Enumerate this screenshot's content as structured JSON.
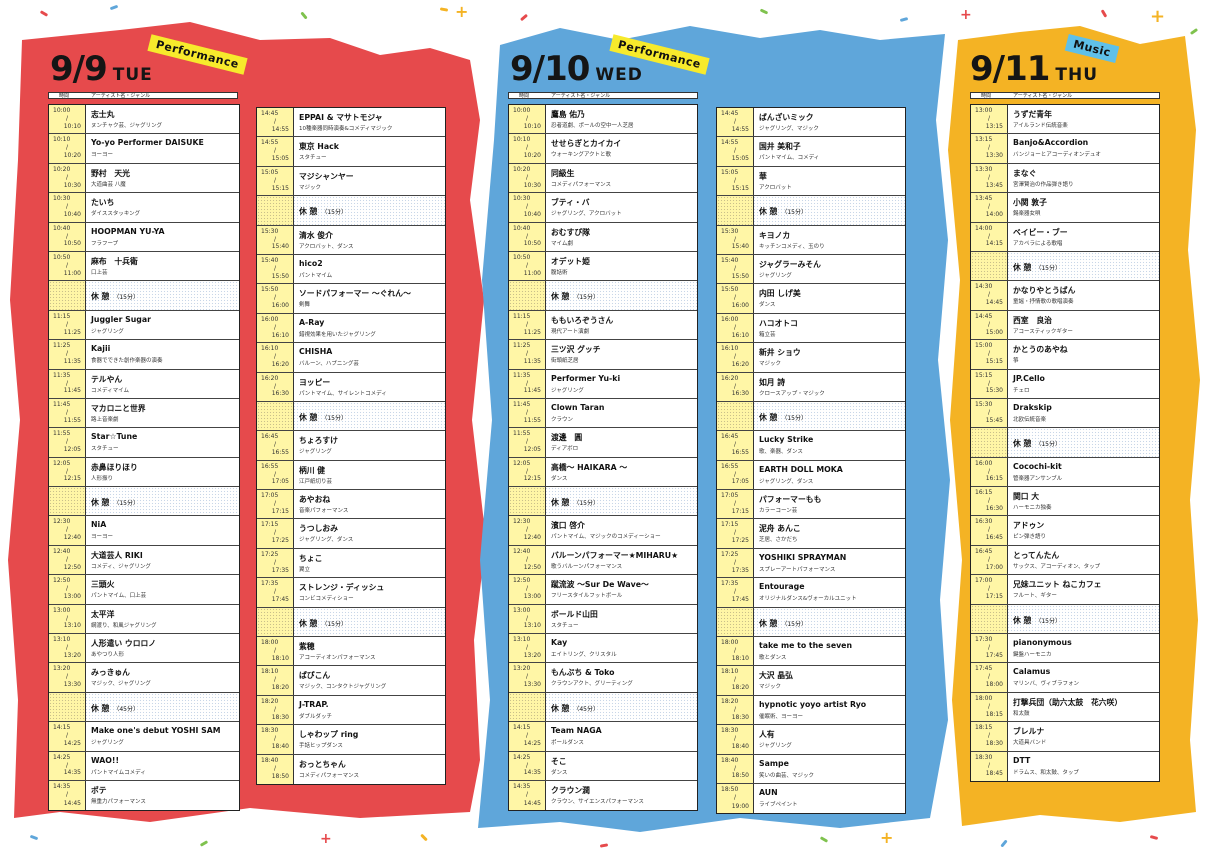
{
  "colors": {
    "red": "#e8454a",
    "blue": "#5aa3d8",
    "yellow": "#f5b21f",
    "time_cell": "#fff6a6",
    "badge_perf": "#f7ea2c",
    "badge_music": "#5fc0e8"
  },
  "header": {
    "time": "時間",
    "artist": "アーティスト名・ジャンル"
  },
  "days": [
    {
      "date": "9/9",
      "weekday": "TUE",
      "badge": "Performance",
      "columns": [
        [
          {
            "t1": "10:00",
            "t2": "10:10",
            "name": "志士丸",
            "genre": "ヌンチャク芸、ジャグリング"
          },
          {
            "t1": "10:10",
            "t2": "10:20",
            "name": "Yo-yo Performer DAISUKE",
            "genre": "ヨーヨー"
          },
          {
            "t1": "10:20",
            "t2": "10:30",
            "name": "野村　天光",
            "genre": "大道曲芸 八魔"
          },
          {
            "t1": "10:30",
            "t2": "10:40",
            "name": "たいち",
            "genre": "ダイススタッキング"
          },
          {
            "t1": "10:40",
            "t2": "10:50",
            "name": "HOOPMAN YU-YA",
            "genre": "フラフープ"
          },
          {
            "t1": "10:50",
            "t2": "11:00",
            "name": "麻布　十兵衛",
            "genre": "口上芸"
          },
          {
            "brk": true,
            "name": "休 憩",
            "note": "（15分）"
          },
          {
            "t1": "11:15",
            "t2": "11:25",
            "name": "Juggler Sugar",
            "genre": "ジャグリング"
          },
          {
            "t1": "11:25",
            "t2": "11:35",
            "name": "Kajii",
            "genre": "食器でできた創作楽器の演奏"
          },
          {
            "t1": "11:35",
            "t2": "11:45",
            "name": "テルやん",
            "genre": "コメディマイム"
          },
          {
            "t1": "11:45",
            "t2": "11:55",
            "name": "マカロニと世界",
            "genre": "路上音楽劇"
          },
          {
            "t1": "11:55",
            "t2": "12:05",
            "name": "Star☆Tune",
            "genre": "スタチュー"
          },
          {
            "t1": "12:05",
            "t2": "12:15",
            "name": "赤鼻ほりほり",
            "genre": "人形振り"
          },
          {
            "brk": true,
            "name": "休 憩",
            "note": "（15分）"
          },
          {
            "t1": "12:30",
            "t2": "12:40",
            "name": "NiA",
            "genre": "ヨーヨー"
          },
          {
            "t1": "12:40",
            "t2": "12:50",
            "name": "大道芸人 RIKI",
            "genre": "コメディ、ジャグリング"
          },
          {
            "t1": "12:50",
            "t2": "13:00",
            "name": "三頭火",
            "genre": "パントマイム、口上芸"
          },
          {
            "t1": "13:00",
            "t2": "13:10",
            "name": "太平洋",
            "genre": "綱渡り、和風ジャグリング"
          },
          {
            "t1": "13:10",
            "t2": "13:20",
            "name": "人形遣い ウロロノ",
            "genre": "あやつり人形"
          },
          {
            "t1": "13:20",
            "t2": "13:30",
            "name": "みっきゅん",
            "genre": "マジック、ジャグリング"
          },
          {
            "brk": true,
            "name": "休 憩",
            "note": "（45分）"
          },
          {
            "t1": "14:15",
            "t2": "14:25",
            "name": "Make one's debut YOSHI SAM",
            "genre": "ジャグリング"
          },
          {
            "t1": "14:25",
            "t2": "14:35",
            "name": "WAO!!",
            "genre": "パントマイムコメディ"
          },
          {
            "t1": "14:35",
            "t2": "14:45",
            "name": "ポテ",
            "genre": "無重力パフォーマンス"
          }
        ],
        [
          {
            "t1": "14:45",
            "t2": "14:55",
            "name": "EPPAI & マサトモジャ",
            "genre": "10種楽器同時演奏&コメディマジック"
          },
          {
            "t1": "14:55",
            "t2": "15:05",
            "name": "東京 Hack",
            "genre": "スタチュー"
          },
          {
            "t1": "15:05",
            "t2": "15:15",
            "name": "マジシャンヤー",
            "genre": "マジック"
          },
          {
            "brk": true,
            "name": "休 憩",
            "note": "（15分）"
          },
          {
            "t1": "15:30",
            "t2": "15:40",
            "name": "清水 俊介",
            "genre": "アクロバット、ダンス"
          },
          {
            "t1": "15:40",
            "t2": "15:50",
            "name": "hico2",
            "genre": "パントマイム"
          },
          {
            "t1": "15:50",
            "t2": "16:00",
            "name": "ソードパフォーマー ～ぐれん～",
            "genre": "剣舞"
          },
          {
            "t1": "16:00",
            "t2": "16:10",
            "name": "A-Ray",
            "genre": "錯視効果を用いたジャグリング"
          },
          {
            "t1": "16:10",
            "t2": "16:20",
            "name": "CHISHA",
            "genre": "バルーン、ハプニング芸"
          },
          {
            "t1": "16:20",
            "t2": "16:30",
            "name": "ヨッピー",
            "genre": "パントマイム、サイレントコメディ"
          },
          {
            "brk": true,
            "name": "休 憩",
            "note": "（15分）"
          },
          {
            "t1": "16:45",
            "t2": "16:55",
            "name": "ちょろすけ",
            "genre": "ジャグリング"
          },
          {
            "t1": "16:55",
            "t2": "17:05",
            "name": "柄川 健",
            "genre": "江戸紙切り芸"
          },
          {
            "t1": "17:05",
            "t2": "17:15",
            "name": "あやおね",
            "genre": "音楽パフォーマンス"
          },
          {
            "t1": "17:15",
            "t2": "17:25",
            "name": "うつしおみ",
            "genre": "ジャグリング、ダンス"
          },
          {
            "t1": "17:25",
            "t2": "17:35",
            "name": "ちょこ",
            "genre": "翼立"
          },
          {
            "t1": "17:35",
            "t2": "17:45",
            "name": "ストレンジ・ディッシュ",
            "genre": "コンビコメディショー"
          },
          {
            "brk": true,
            "name": "休 憩",
            "note": "（15分）"
          },
          {
            "t1": "18:00",
            "t2": "18:10",
            "name": "紫穂",
            "genre": "アコーディオンパフォーマンス"
          },
          {
            "t1": "18:10",
            "t2": "18:20",
            "name": "ぱぴこん",
            "genre": "マジック、コンタクトジャグリング"
          },
          {
            "t1": "18:20",
            "t2": "18:30",
            "name": "J-TRAP.",
            "genre": "ダブルダッチ"
          },
          {
            "t1": "18:30",
            "t2": "18:40",
            "name": "しゃわップ ring",
            "genre": "手話ヒップダンス"
          },
          {
            "t1": "18:40",
            "t2": "18:50",
            "name": "おっとちゃん",
            "genre": "コメディパフォーマンス"
          }
        ]
      ]
    },
    {
      "date": "9/10",
      "weekday": "WED",
      "badge": "Performance",
      "columns": [
        [
          {
            "t1": "10:00",
            "t2": "10:10",
            "name": "鷹島 佑乃",
            "genre": "忍者道劇、ポールの空中一人芝居"
          },
          {
            "t1": "10:10",
            "t2": "10:20",
            "name": "せせらぎとカイカイ",
            "genre": "ウォーキングアクトと歌"
          },
          {
            "t1": "10:20",
            "t2": "10:30",
            "name": "同級生",
            "genre": "コメディパフォーマンス"
          },
          {
            "t1": "10:30",
            "t2": "10:40",
            "name": "ブティ・バ",
            "genre": "ジャグリング、アクロバット"
          },
          {
            "t1": "10:40",
            "t2": "10:50",
            "name": "おむすび隊",
            "genre": "マイム劇"
          },
          {
            "t1": "10:50",
            "t2": "11:00",
            "name": "オデット姫",
            "genre": "腹話術"
          },
          {
            "brk": true,
            "name": "休 憩",
            "note": "（15分）"
          },
          {
            "t1": "11:15",
            "t2": "11:25",
            "name": "ももいろぞうさん",
            "genre": "現代アート演劇"
          },
          {
            "t1": "11:25",
            "t2": "11:35",
            "name": "三ツ沢 グッチ",
            "genre": "街頭紙芝居"
          },
          {
            "t1": "11:35",
            "t2": "11:45",
            "name": "Performer Yu-ki",
            "genre": "ジャグリング"
          },
          {
            "t1": "11:45",
            "t2": "11:55",
            "name": "Clown Taran",
            "genre": "クラウン"
          },
          {
            "t1": "11:55",
            "t2": "12:05",
            "name": "渡邊　圓",
            "genre": "ディアボロ"
          },
          {
            "t1": "12:05",
            "t2": "12:15",
            "name": "高橋～ HAIKARA ～",
            "genre": "ダンス"
          },
          {
            "brk": true,
            "name": "休 憩",
            "note": "（15分）"
          },
          {
            "t1": "12:30",
            "t2": "12:40",
            "name": "濱口 啓介",
            "genre": "パントマイム、マジックのコメディーショー"
          },
          {
            "t1": "12:40",
            "t2": "12:50",
            "name": "バルーンパフォーマー★MIHARU★",
            "genre": "歌うバルーンパフォーマンス"
          },
          {
            "t1": "12:50",
            "t2": "13:00",
            "name": "蹴流波 ～Sur De Wave～",
            "genre": "フリースタイルフットボール"
          },
          {
            "t1": "13:00",
            "t2": "13:10",
            "name": "ボールド山田",
            "genre": "スタチュー"
          },
          {
            "t1": "13:10",
            "t2": "13:20",
            "name": "Kay",
            "genre": "エイトリング、クリスタル"
          },
          {
            "t1": "13:20",
            "t2": "13:30",
            "name": "もんぷち & Toko",
            "genre": "クラウンアクト、グリーティング"
          },
          {
            "brk": true,
            "name": "休 憩",
            "note": "（45分）"
          },
          {
            "t1": "14:15",
            "t2": "14:25",
            "name": "Team NAGA",
            "genre": "ポールダンス"
          },
          {
            "t1": "14:25",
            "t2": "14:35",
            "name": "そこ",
            "genre": "ダンス"
          },
          {
            "t1": "14:35",
            "t2": "14:45",
            "name": "クラウン潤",
            "genre": "クラウン、サイエンスパフォーマンス"
          }
        ],
        [
          {
            "t1": "14:45",
            "t2": "14:55",
            "name": "ばんざいミック",
            "genre": "ジャグリング、マジック"
          },
          {
            "t1": "14:55",
            "t2": "15:05",
            "name": "国井 美和子",
            "genre": "パントマイム、コメディ"
          },
          {
            "t1": "15:05",
            "t2": "15:15",
            "name": "華",
            "genre": "アクロバット"
          },
          {
            "brk": true,
            "name": "休 憩",
            "note": "（15分）"
          },
          {
            "t1": "15:30",
            "t2": "15:40",
            "name": "キヨノカ",
            "genre": "キッチンコメディ、玉のり"
          },
          {
            "t1": "15:40",
            "t2": "15:50",
            "name": "ジャグラーみそん",
            "genre": "ジャグリング"
          },
          {
            "t1": "15:50",
            "t2": "16:00",
            "name": "内田 しげ美",
            "genre": "ダンス"
          },
          {
            "t1": "16:00",
            "t2": "16:10",
            "name": "ハコオトコ",
            "genre": "箱立芸"
          },
          {
            "t1": "16:10",
            "t2": "16:20",
            "name": "新井 ショウ",
            "genre": "マジック"
          },
          {
            "t1": "16:20",
            "t2": "16:30",
            "name": "如月 詩",
            "genre": "クロースアップ・マジック"
          },
          {
            "brk": true,
            "name": "休 憩",
            "note": "（15分）"
          },
          {
            "t1": "16:45",
            "t2": "16:55",
            "name": "Lucky Strike",
            "genre": "歌、楽器、ダンス"
          },
          {
            "t1": "16:55",
            "t2": "17:05",
            "name": "EARTH DOLL MOKA",
            "genre": "ジャグリング、ダンス"
          },
          {
            "t1": "17:05",
            "t2": "17:15",
            "name": "パフォーマーもも",
            "genre": "カラーコーン芸"
          },
          {
            "t1": "17:15",
            "t2": "17:25",
            "name": "泥舟 あんこ",
            "genre": "芝居、さかだち"
          },
          {
            "t1": "17:25",
            "t2": "17:35",
            "name": "YOSHIKI SPRAYMAN",
            "genre": "スプレーアートパフォーマンス"
          },
          {
            "t1": "17:35",
            "t2": "17:45",
            "name": "Entourage",
            "genre": "オリジナルダンス&ヴォーカルユニット"
          },
          {
            "brk": true,
            "name": "休 憩",
            "note": "（15分）"
          },
          {
            "t1": "18:00",
            "t2": "18:10",
            "name": "take me to the seven",
            "genre": "歌とダンス"
          },
          {
            "t1": "18:10",
            "t2": "18:20",
            "name": "大沢 晶弘",
            "genre": "マジック"
          },
          {
            "t1": "18:20",
            "t2": "18:30",
            "name": "hypnotic yoyo artist Ryo",
            "genre": "催眠術、ヨーヨー"
          },
          {
            "t1": "18:30",
            "t2": "18:40",
            "name": "人有",
            "genre": "ジャグリング"
          },
          {
            "t1": "18:40",
            "t2": "18:50",
            "name": "Sampe",
            "genre": "笑いの曲芸、マジック"
          },
          {
            "t1": "18:50",
            "t2": "19:00",
            "name": "AUN",
            "genre": "ライブペイント"
          }
        ]
      ]
    },
    {
      "date": "9/11",
      "weekday": "THU",
      "badge": "Music",
      "columns": [
        [
          {
            "t1": "13:00",
            "t2": "13:15",
            "name": "うずだ青年",
            "genre": "アイルランド伝統音楽"
          },
          {
            "t1": "13:15",
            "t2": "13:30",
            "name": "Banjo&Accordion",
            "genre": "バンジョーとアコーディオンデュオ"
          },
          {
            "t1": "13:30",
            "t2": "13:45",
            "name": "まなぐ",
            "genre": "宮澤賢治の作品弾き語り"
          },
          {
            "t1": "13:45",
            "t2": "14:00",
            "name": "小関 敦子",
            "genre": "錫楽器女唄"
          },
          {
            "t1": "14:00",
            "t2": "14:15",
            "name": "ベイビー・ブー",
            "genre": "アカペラによる歌唱"
          },
          {
            "brk": true,
            "name": "休 憩",
            "note": "（15分）"
          },
          {
            "t1": "14:30",
            "t2": "14:45",
            "name": "かなりやとうばん",
            "genre": "童謡・抒情歌の歌唱演奏"
          },
          {
            "t1": "14:45",
            "t2": "15:00",
            "name": "西室　良治",
            "genre": "アコースティックギター"
          },
          {
            "t1": "15:00",
            "t2": "15:15",
            "name": "かとうのあやね",
            "genre": "箏"
          },
          {
            "t1": "15:15",
            "t2": "15:30",
            "name": "JP.Cello",
            "genre": "チェロ"
          },
          {
            "t1": "15:30",
            "t2": "15:45",
            "name": "Drakskip",
            "genre": "北欧伝統音楽"
          },
          {
            "brk": true,
            "name": "休 憩",
            "note": "（15分）"
          },
          {
            "t1": "16:00",
            "t2": "16:15",
            "name": "Cocochi-kit",
            "genre": "管楽器アンサンブル"
          },
          {
            "t1": "16:15",
            "t2": "16:30",
            "name": "関口 大",
            "genre": "ハーモニカ独奏"
          },
          {
            "t1": "16:30",
            "t2": "16:45",
            "name": "アドゥン",
            "genre": "ピン弾き語り"
          },
          {
            "t1": "16:45",
            "t2": "17:00",
            "name": "とってんたん",
            "genre": "サックス、アコーディオン、タップ"
          },
          {
            "t1": "17:00",
            "t2": "17:15",
            "name": "兄妹ユニット ねこカフェ",
            "genre": "フルート、ギター"
          },
          {
            "brk": true,
            "name": "休 憩",
            "note": "（15分）"
          },
          {
            "t1": "17:30",
            "t2": "17:45",
            "name": "pianonymous",
            "genre": "鍵盤ハーモニカ"
          },
          {
            "t1": "17:45",
            "t2": "18:00",
            "name": "Calamus",
            "genre": "マリンバ、ヴィブラフォン"
          },
          {
            "t1": "18:00",
            "t2": "18:15",
            "name": "打撃兵団（助六太鼓　花六咲）",
            "genre": "和太鼓"
          },
          {
            "t1": "18:15",
            "t2": "18:30",
            "name": "ブレルナ",
            "genre": "大道具バンド"
          },
          {
            "t1": "18:30",
            "t2": "18:45",
            "name": "DTT",
            "genre": "ドラムス、和太鼓、タップ"
          }
        ]
      ]
    }
  ]
}
